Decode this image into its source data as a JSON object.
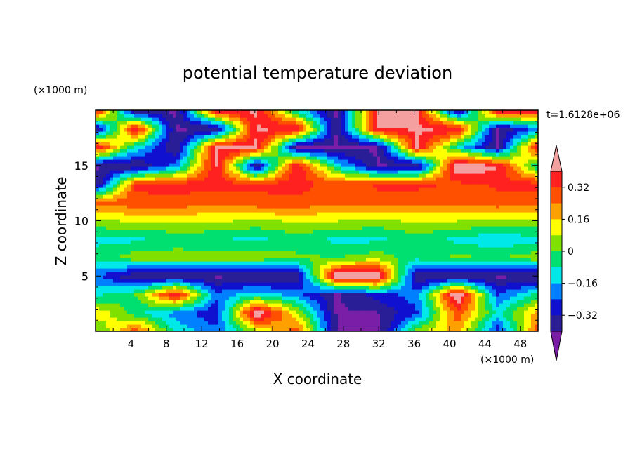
{
  "chart_data": {
    "type": "heatmap",
    "title": "potential temperature deviation",
    "xlabel": "X coordinate",
    "ylabel": "Z coordinate",
    "x_unit": "(×1000 m)",
    "y_unit": "(×1000 m)",
    "time_label": "t=1.6128e+06",
    "xlim": [
      0,
      50
    ],
    "ylim": [
      0,
      20
    ],
    "x_ticks": [
      "4",
      "8",
      "12",
      "16",
      "20",
      "24",
      "28",
      "32",
      "36",
      "40",
      "44",
      "48"
    ],
    "y_ticks": [
      "5",
      "10",
      "15"
    ],
    "colorbar_labels": [
      "0.32",
      "0.16",
      "0",
      "−0.16",
      "−0.32"
    ],
    "levels": [
      -0.4,
      -0.32,
      -0.24,
      -0.16,
      -0.08,
      0,
      0.08,
      0.16,
      0.24,
      0.32,
      0.4
    ],
    "colors": [
      "#7a1ea8",
      "#2a1e96",
      "#1010d0",
      "#0080ff",
      "#00e8e8",
      "#00e070",
      "#80e000",
      "#ffff00",
      "#ffa000",
      "#ff5000",
      "#ff2020",
      "#f4a0a0"
    ],
    "field": [
      [
        -0.02,
        0.3,
        -0.1,
        -0.22,
        0.05,
        0.3,
        -0.41,
        -0.45,
        0.05,
        0.2,
        -0.3,
        0.3
      ],
      [
        0.15,
        -0.05,
        -0.2,
        -0.3,
        0.5,
        0.1,
        -0.41,
        -0.41,
        -0.25,
        0.3,
        -0.1,
        0.2
      ],
      [
        -0.1,
        0.0,
        0.4,
        -0.22,
        -0.1,
        -0.2,
        -0.41,
        -0.28,
        -0.2,
        0.5,
        -0.25,
        -0.05
      ],
      [
        -0.22,
        -0.41,
        -0.41,
        -0.41,
        -0.41,
        -0.41,
        0.5,
        0.5,
        -0.41,
        -0.41,
        -0.41,
        -0.41
      ],
      [
        -0.05,
        0.05,
        0.05,
        0.05,
        0.05,
        0.02,
        0.0,
        0.05,
        -0.05,
        0.02,
        0.0,
        0.05
      ],
      [
        -0.1,
        -0.1,
        -0.05,
        -0.08,
        -0.1,
        -0.05,
        -0.1,
        -0.1,
        -0.05,
        -0.1,
        -0.15,
        -0.1
      ],
      [
        0.05,
        0.1,
        0.08,
        0.1,
        0.05,
        0.1,
        0.08,
        0.05,
        0.1,
        0.08,
        0.05,
        0.05
      ],
      [
        0.25,
        0.3,
        0.3,
        0.25,
        0.3,
        0.3,
        0.25,
        0.3,
        0.25,
        0.25,
        0.3,
        0.25
      ],
      [
        -0.41,
        0.33,
        0.36,
        0.35,
        0.33,
        0.36,
        0.28,
        0.33,
        0.35,
        0.3,
        0.33,
        0.36
      ],
      [
        -0.41,
        -0.41,
        -0.2,
        0.41,
        -0.41,
        0.41,
        -0.1,
        -0.41,
        -0.41,
        0.5,
        0.41,
        -0.1
      ],
      [
        0.41,
        -0.1,
        -0.41,
        0.41,
        0.41,
        -0.41,
        -0.41,
        -0.41,
        0.41,
        -0.1,
        -0.41,
        0.41
      ],
      [
        -0.41,
        0.41,
        -0.41,
        -0.41,
        0.41,
        0.41,
        -0.41,
        0.41,
        0.41,
        0.41,
        -0.41,
        -0.2
      ],
      [
        0.41,
        -0.41,
        -0.41,
        0.41,
        0.41,
        -0.1,
        -0.41,
        0.41,
        0.41,
        -0.41,
        0.41,
        0.41
      ]
    ]
  }
}
